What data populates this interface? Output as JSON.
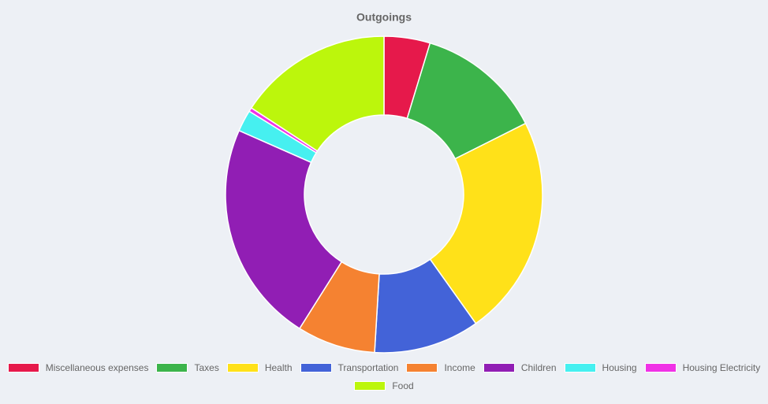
{
  "chart_data": {
    "type": "doughnut",
    "title": "Outgoings",
    "categories": [
      "Miscellaneous expenses",
      "Taxes",
      "Health",
      "Transportation",
      "Income",
      "Children",
      "Housing",
      "Housing Electricity",
      "Food"
    ],
    "values": [
      4.7,
      12.9,
      22.6,
      10.8,
      8.0,
      22.7,
      2.2,
      0.4,
      15.8
    ],
    "colors": [
      "#e6194b",
      "#3cb44b",
      "#ffe119",
      "#4363d8",
      "#f58231",
      "#911eb4",
      "#46f0f0",
      "#f032e6",
      "#bcf60c"
    ],
    "legend": "bottom"
  }
}
